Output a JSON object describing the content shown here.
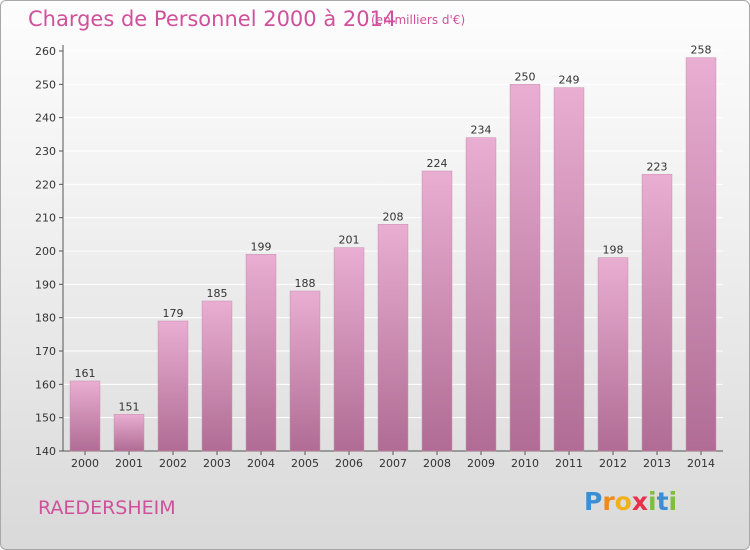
{
  "title": "Charges de Personnel 2000 à 2014",
  "subtitle": "(en milliers d'€)",
  "city": "RAEDERSHEIM",
  "logo": {
    "letters": [
      "P",
      "r",
      "o",
      "x",
      "i",
      "t",
      "i"
    ],
    "colors": [
      "#3a8fd4",
      "#f08a1c",
      "#f0b21c",
      "#e8304a",
      "#7bbf3a",
      "#3a8fd4",
      "#7bbf3a"
    ]
  },
  "colors": {
    "accent": "#d0519b",
    "bar_top": "#e9aed2",
    "bar_bottom": "#b06c94"
  },
  "chart_data": {
    "type": "bar",
    "categories": [
      "2000",
      "2001",
      "2002",
      "2003",
      "2004",
      "2005",
      "2006",
      "2007",
      "2008",
      "2009",
      "2010",
      "2011",
      "2012",
      "2013",
      "2014"
    ],
    "values": [
      161,
      151,
      179,
      185,
      199,
      188,
      201,
      208,
      224,
      234,
      250,
      249,
      198,
      223,
      258
    ],
    "ylim": [
      140,
      260
    ],
    "yticks": [
      140,
      150,
      160,
      170,
      180,
      190,
      200,
      210,
      220,
      230,
      240,
      250,
      260
    ],
    "grid": true,
    "legend": "none"
  }
}
